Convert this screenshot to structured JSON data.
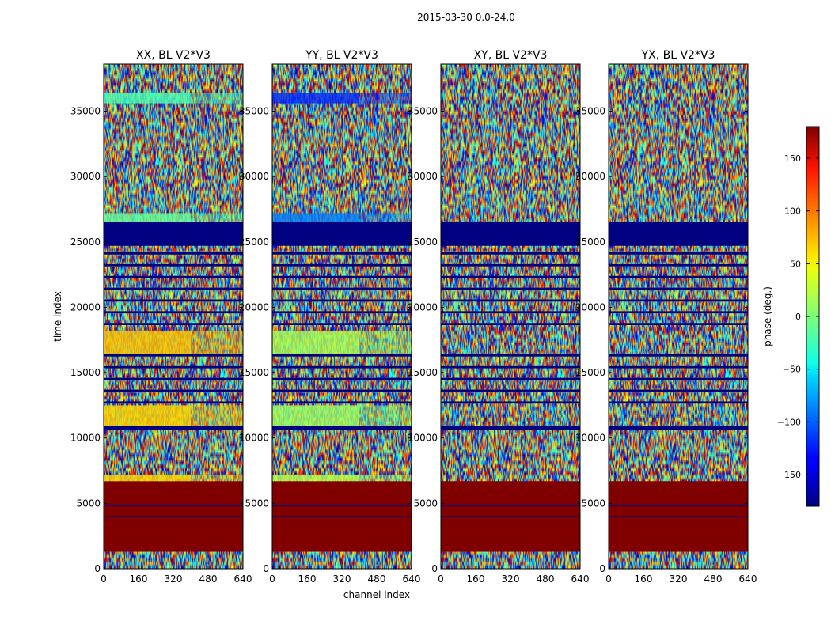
{
  "chart_data": {
    "type": "heatmap",
    "suptitle": "2015-03-30 0.0-24.0",
    "xlabel": "channel index",
    "ylabel": "time index",
    "xlim": [
      0,
      640
    ],
    "ylim": [
      0,
      38600
    ],
    "xticks": [
      0,
      160,
      320,
      480,
      640
    ],
    "yticks": [
      0,
      5000,
      10000,
      15000,
      20000,
      25000,
      30000,
      35000
    ],
    "xtick_labels": [
      "0",
      "160",
      "320",
      "480",
      "640"
    ],
    "ytick_labels": [
      "0",
      "5000",
      "10000",
      "15000",
      "20000",
      "25000",
      "30000",
      "35000"
    ],
    "panels": [
      {
        "title": "XX, BL V2*V3",
        "pol": "XX"
      },
      {
        "title": "YY, BL V2*V3",
        "pol": "YY"
      },
      {
        "title": "XY, BL V2*V3",
        "pol": "XY"
      },
      {
        "title": "YX, BL V2*V3",
        "pol": "YX"
      }
    ],
    "colorbar": {
      "label": "phase (deg.)",
      "colormap": "jet",
      "range": [
        -180,
        180
      ],
      "ticks": [
        -150,
        -100,
        -50,
        0,
        50,
        100,
        150
      ],
      "tick_labels": [
        "−150",
        "−100",
        "−50",
        "0",
        "50",
        "100",
        "150"
      ]
    },
    "bands": [
      {
        "from": 0,
        "to": 1300,
        "kind": "noise",
        "phase": null
      },
      {
        "from": 1300,
        "to": 6700,
        "kind": "uniform",
        "phase": 180
      },
      {
        "from": 6700,
        "to": 7200,
        "kind": "pol",
        "phase": {
          "XX": 60,
          "YY": 20,
          "XY": null,
          "YX": null
        }
      },
      {
        "from": 7200,
        "to": 10600,
        "kind": "noise",
        "phase": null
      },
      {
        "from": 10600,
        "to": 10900,
        "kind": "uniform",
        "phase": -180
      },
      {
        "from": 10900,
        "to": 12500,
        "kind": "pol",
        "phase": {
          "XX": 60,
          "YY": 10,
          "XY": null,
          "YX": null
        }
      },
      {
        "from": 12500,
        "to": 16400,
        "kind": "striped",
        "phase": null
      },
      {
        "from": 16400,
        "to": 18200,
        "kind": "pol",
        "phase": {
          "XX": 65,
          "YY": 15,
          "XY": null,
          "YX": null
        }
      },
      {
        "from": 18200,
        "to": 24200,
        "kind": "striped",
        "phase": null
      },
      {
        "from": 24200,
        "to": 24700,
        "kind": "noise",
        "phase": null
      },
      {
        "from": 24700,
        "to": 26500,
        "kind": "uniform",
        "phase": -180
      },
      {
        "from": 26500,
        "to": 27200,
        "kind": "pol",
        "phase": {
          "XX": -10,
          "YY": -90,
          "XY": null,
          "YX": null
        }
      },
      {
        "from": 27200,
        "to": 35600,
        "kind": "noise",
        "phase": null
      },
      {
        "from": 35600,
        "to": 36400,
        "kind": "pol",
        "phase": {
          "XX": -20,
          "YY": -120,
          "XY": null,
          "YX": null
        }
      },
      {
        "from": 36400,
        "to": 38600,
        "kind": "noise",
        "phase": null
      }
    ]
  }
}
